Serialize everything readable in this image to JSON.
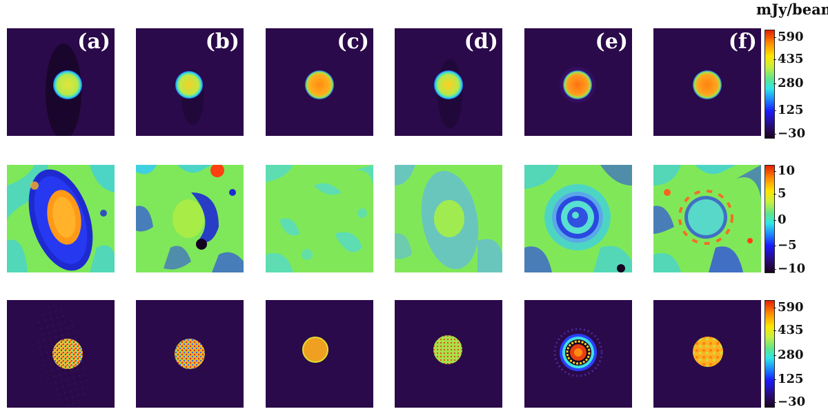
{
  "figure": {
    "colorbar_unit": "mJy/beam",
    "columns": [
      "(a)",
      "(b)",
      "(c)",
      "(d)",
      "(e)",
      "(f)"
    ],
    "rows": [
      {
        "name": "top",
        "colorbar_ticks": [
          "590",
          "435",
          "280",
          "125",
          "−30"
        ],
        "colorbar_range": [
          -30,
          590
        ]
      },
      {
        "name": "middle",
        "colorbar_ticks": [
          "10",
          "5",
          "0",
          "−5",
          "−10"
        ],
        "colorbar_range": [
          -10,
          10
        ]
      },
      {
        "name": "bottom",
        "colorbar_ticks": [
          "590",
          "435",
          "280",
          "125",
          "−30"
        ],
        "colorbar_range": [
          -30,
          590
        ]
      }
    ]
  }
}
